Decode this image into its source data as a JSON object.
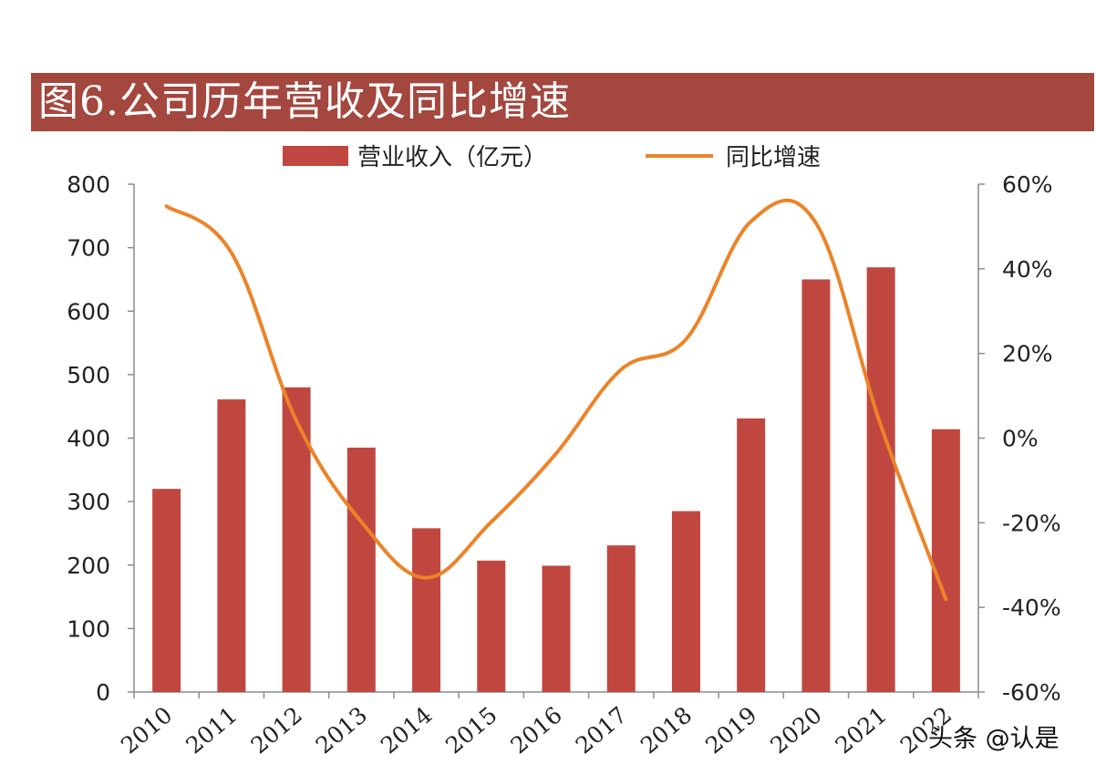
{
  "title": "图6.公司历年营收及同比增速",
  "watermark": "头条 @认是",
  "colors": {
    "bar": "#c0473f",
    "line": "#ec8328",
    "title_bg": "#a3473f"
  },
  "chart_data": {
    "type": "bar",
    "categories": [
      "2010",
      "2011",
      "2012",
      "2013",
      "2014",
      "2015",
      "2016",
      "2017",
      "2018",
      "2019",
      "2020",
      "2021",
      "2022"
    ],
    "series": [
      {
        "name": "营业收入（亿元）",
        "type": "bar",
        "axis": "left",
        "values": [
          320,
          461,
          480,
          385,
          258,
          207,
          199,
          231,
          285,
          431,
          650,
          669,
          414
        ]
      },
      {
        "name": "同比增速",
        "type": "line",
        "axis": "right",
        "values": [
          54.8,
          43.8,
          4.1,
          -19.8,
          -33.0,
          -19.8,
          -3.6,
          16.2,
          23.4,
          51.2,
          50.8,
          2.9,
          -38.1
        ]
      }
    ],
    "y_left": {
      "range": [
        0,
        800
      ],
      "ticks": [
        "0",
        "100",
        "200",
        "300",
        "400",
        "500",
        "600",
        "700",
        "800"
      ]
    },
    "y_right": {
      "range": [
        -60,
        60
      ],
      "ticks": [
        "-60%",
        "-40%",
        "-20%",
        "0%",
        "20%",
        "40%",
        "60%"
      ]
    },
    "legend_position": "top",
    "grid": false,
    "tick_labels_rotated": true
  }
}
